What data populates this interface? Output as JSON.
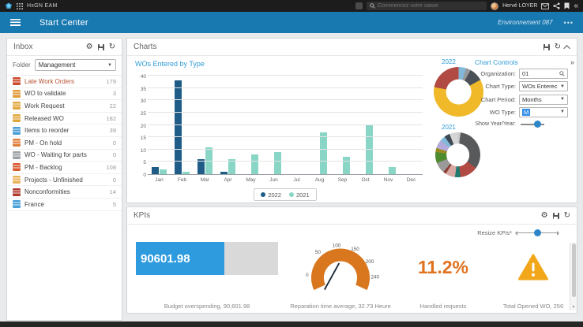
{
  "topbar": {
    "app_name": "HxGN EAM",
    "search_placeholder": "Commencez votre saisie",
    "user_name": "Hervé LOYER"
  },
  "header": {
    "title": "Start Center",
    "environment": "Environnement 087"
  },
  "inbox": {
    "title": "Inbox",
    "folder_label": "Folder",
    "folder_value": "Management",
    "items": [
      {
        "label": "Late Work Orders",
        "count": "179",
        "color": "#cc4a2e",
        "highlight": true
      },
      {
        "label": "WO to validate",
        "count": "3",
        "color": "#e09c3c",
        "highlight": false
      },
      {
        "label": "Work Request",
        "count": "22",
        "color": "#e0a83c",
        "highlight": false
      },
      {
        "label": "Released WO",
        "count": "182",
        "color": "#e0a83c",
        "highlight": false
      },
      {
        "label": "Items to reorder",
        "count": "39",
        "color": "#4aa0d8",
        "highlight": false
      },
      {
        "label": "PM - On hold",
        "count": "0",
        "color": "#e07e3c",
        "highlight": false
      },
      {
        "label": "WO - Waiting for parts",
        "count": "0",
        "color": "#9aa0a6",
        "highlight": false
      },
      {
        "label": "PM - Backlog",
        "count": "108",
        "color": "#d85c2e",
        "highlight": false
      },
      {
        "label": "Projects - Unfinished",
        "count": "0",
        "color": "#e8b45c",
        "highlight": false
      },
      {
        "label": "Nonconformities",
        "count": "14",
        "color": "#b03a30",
        "highlight": false
      },
      {
        "label": "France",
        "count": "5",
        "color": "#4aa0d8",
        "highlight": false
      }
    ]
  },
  "charts": {
    "title": "Charts",
    "chart_title": "WOs Entered by Type",
    "donut2022_label": "2022",
    "donut2021_label": "2021",
    "controls": {
      "title": "Chart Controls",
      "organization_label": "Organization:",
      "organization_value": "01",
      "chart_type_label": "Chart Type:",
      "chart_type_value": "WOs Enterec",
      "chart_period_label": "Chart Period:",
      "chart_period_value": "Months",
      "wo_type_label": "WO Type:",
      "wo_type_value": "M",
      "show_yoy_label": "Show Year/Year:"
    }
  },
  "kpis": {
    "title": "KPIs",
    "resize_label": "Resize KPIs*",
    "budget": {
      "value": "90601.98",
      "fill_pct": 62,
      "caption": "Budget overspending, 90,601.98"
    },
    "gauge": {
      "scale": [
        "0",
        "50",
        "100",
        "150",
        "200",
        "240"
      ],
      "value": 32.73,
      "caption": "Reparation time average, 32.73 Heure"
    },
    "handled": {
      "value": "11.2%",
      "caption": "Handled requests"
    },
    "opened": {
      "caption": "Total Opened WO, 256"
    }
  },
  "chart_data": [
    {
      "type": "bar",
      "title": "WOs Entered by Type",
      "categories": [
        "Jan",
        "Feb",
        "Mar",
        "Apr",
        "May",
        "Jun",
        "Jul",
        "Aug",
        "Sep",
        "Oct",
        "Nov",
        "Dec"
      ],
      "series": [
        {
          "name": "2022",
          "color": "#1f5c87",
          "values": [
            3,
            38,
            6,
            1,
            0,
            0,
            0,
            0,
            0,
            0,
            0,
            0
          ]
        },
        {
          "name": "2021",
          "color": "#8ad6c6",
          "values": [
            2,
            1,
            11,
            6,
            8,
            9,
            0,
            17,
            7,
            20,
            3,
            0
          ]
        }
      ],
      "ylim": [
        0,
        40
      ],
      "ytick_step": 5,
      "grid": true,
      "legend_position": "bottom"
    },
    {
      "type": "pie",
      "title": "2022",
      "slices": [
        {
          "color": "#82b8d8",
          "value": 5
        },
        {
          "color": "#98999b",
          "value": 3
        },
        {
          "color": "#4b5058",
          "value": 9
        },
        {
          "color": "#efb929",
          "value": 61
        },
        {
          "color": "#b04a42",
          "value": 22
        }
      ]
    },
    {
      "type": "pie",
      "title": "2021",
      "slices": [
        {
          "color": "#c9c9c9",
          "value": 2
        },
        {
          "color": "#58595b",
          "value": 33
        },
        {
          "color": "#b04a42",
          "value": 13
        },
        {
          "color": "#1f7a70",
          "value": 4
        },
        {
          "color": "#d8a8a2",
          "value": 7
        },
        {
          "color": "#8a3a30",
          "value": 2
        },
        {
          "color": "#9a9a9a",
          "value": 8
        },
        {
          "color": "#4f8a2f",
          "value": 8
        },
        {
          "color": "#9a8a20",
          "value": 3
        },
        {
          "color": "#b4abdc",
          "value": 6
        },
        {
          "color": "#82b8d8",
          "value": 4
        },
        {
          "color": "#3c4852",
          "value": 4
        },
        {
          "color": "#d5d5d5",
          "value": 6
        }
      ]
    },
    {
      "type": "gauge",
      "title": "Reparation time average",
      "value": 32.73,
      "scale": [
        0,
        50,
        100,
        150,
        200,
        240
      ],
      "color": "#d9771f"
    }
  ]
}
